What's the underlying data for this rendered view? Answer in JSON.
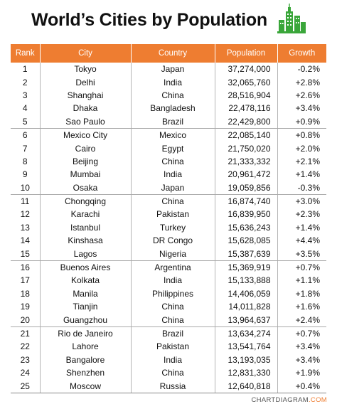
{
  "title": "World’s Cities by Population",
  "footer": {
    "brand": "CHARTDIAGRAM",
    "tld": ".COM"
  },
  "colors": {
    "header": "#ee7d31",
    "logo_green": "#3aa63a"
  },
  "chart_data": {
    "type": "table",
    "columns": [
      "Rank",
      "City",
      "Country",
      "Population",
      "Growth"
    ],
    "rows": [
      {
        "rank": "1",
        "city": "Tokyo",
        "country": "Japan",
        "population": "37,274,000",
        "growth": "-0.2%"
      },
      {
        "rank": "2",
        "city": "Delhi",
        "country": "India",
        "population": "32,065,760",
        "growth": "+2.8%"
      },
      {
        "rank": "3",
        "city": "Shanghai",
        "country": "China",
        "population": "28,516,904",
        "growth": "+2.6%"
      },
      {
        "rank": "4",
        "city": "Dhaka",
        "country": "Bangladesh",
        "population": "22,478,116",
        "growth": "+3.4%"
      },
      {
        "rank": "5",
        "city": "Sao Paulo",
        "country": "Brazil",
        "population": "22,429,800",
        "growth": "+0.9%"
      },
      {
        "rank": "6",
        "city": "Mexico City",
        "country": "Mexico",
        "population": "22,085,140",
        "growth": "+0.8%"
      },
      {
        "rank": "7",
        "city": "Cairo",
        "country": "Egypt",
        "population": "21,750,020",
        "growth": "+2.0%"
      },
      {
        "rank": "8",
        "city": "Beijing",
        "country": "China",
        "population": "21,333,332",
        "growth": "+2.1%"
      },
      {
        "rank": "9",
        "city": "Mumbai",
        "country": "India",
        "population": "20,961,472",
        "growth": "+1.4%"
      },
      {
        "rank": "10",
        "city": "Osaka",
        "country": "Japan",
        "population": "19,059,856",
        "growth": "-0.3%"
      },
      {
        "rank": "11",
        "city": "Chongqing",
        "country": "China",
        "population": "16,874,740",
        "growth": "+3.0%"
      },
      {
        "rank": "12",
        "city": "Karachi",
        "country": "Pakistan",
        "population": "16,839,950",
        "growth": "+2.3%"
      },
      {
        "rank": "13",
        "city": "Istanbul",
        "country": "Turkey",
        "population": "15,636,243",
        "growth": "+1.4%"
      },
      {
        "rank": "14",
        "city": "Kinshasa",
        "country": "DR Congo",
        "population": "15,628,085",
        "growth": "+4.4%"
      },
      {
        "rank": "15",
        "city": "Lagos",
        "country": "Nigeria",
        "population": "15,387,639",
        "growth": "+3.5%"
      },
      {
        "rank": "16",
        "city": "Buenos Aires",
        "country": "Argentina",
        "population": "15,369,919",
        "growth": "+0.7%"
      },
      {
        "rank": "17",
        "city": "Kolkata",
        "country": "India",
        "population": "15,133,888",
        "growth": "+1.1%"
      },
      {
        "rank": "18",
        "city": "Manila",
        "country": "Philippines",
        "population": "14,406,059",
        "growth": "+1.8%"
      },
      {
        "rank": "19",
        "city": "Tianjin",
        "country": "China",
        "population": "14,011,828",
        "growth": "+1.6%"
      },
      {
        "rank": "20",
        "city": "Guangzhou",
        "country": "China",
        "population": "13,964,637",
        "growth": "+2.4%"
      },
      {
        "rank": "21",
        "city": "Rio de Janeiro",
        "country": "Brazil",
        "population": "13,634,274",
        "growth": "+0.7%"
      },
      {
        "rank": "22",
        "city": "Lahore",
        "country": "Pakistan",
        "population": "13,541,764",
        "growth": "+3.4%"
      },
      {
        "rank": "23",
        "city": "Bangalore",
        "country": "India",
        "population": "13,193,035",
        "growth": "+3.4%"
      },
      {
        "rank": "24",
        "city": "Shenzhen",
        "country": "China",
        "population": "12,831,330",
        "growth": "+1.9%"
      },
      {
        "rank": "25",
        "city": "Moscow",
        "country": "Russia",
        "population": "12,640,818",
        "growth": "+0.4%"
      }
    ]
  }
}
